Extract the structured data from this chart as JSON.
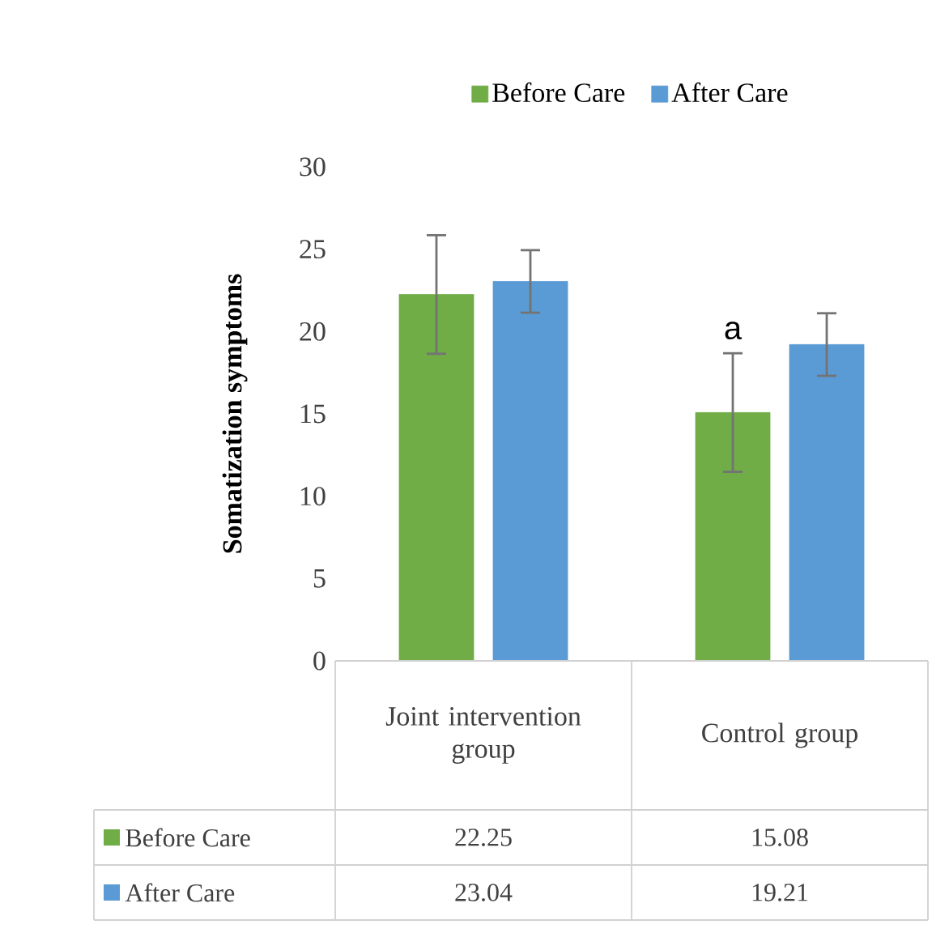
{
  "chart_data": {
    "type": "bar",
    "ylabel": "Somatization symptoms",
    "categories": [
      "Joint intervention group",
      "Control group"
    ],
    "series": [
      {
        "name": "Before Care",
        "color": "#70ad47",
        "values": [
          22.25,
          15.08
        ],
        "errors": [
          3.6,
          3.6
        ]
      },
      {
        "name": "After Care",
        "color": "#5b9bd5",
        "values": [
          23.04,
          19.21
        ],
        "errors": [
          1.9,
          1.9
        ]
      }
    ],
    "ylim": [
      0,
      30
    ],
    "yticks": [
      0,
      5,
      10,
      15,
      20,
      25,
      30
    ],
    "annotations": [
      "a"
    ],
    "data_labels": true,
    "legend": "top",
    "grid": false
  }
}
